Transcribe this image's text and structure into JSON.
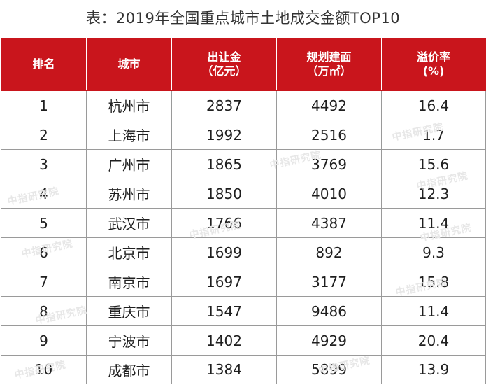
{
  "title": "表：2019年全国重点城市土地成交金额TOP10",
  "header": {
    "rank": "排名",
    "city": "城市",
    "amount_line1": "出让金",
    "amount_line2": "（亿元）",
    "area_line1": "规划建面",
    "area_line2": "（万㎡）",
    "premium_line1": "溢价率",
    "premium_line2": "(%)"
  },
  "rows": [
    {
      "rank": "1",
      "city": "杭州市",
      "amount": "2837",
      "area": "4492",
      "premium": "16.4"
    },
    {
      "rank": "2",
      "city": "上海市",
      "amount": "1992",
      "area": "2516",
      "premium": "1.7"
    },
    {
      "rank": "3",
      "city": "广州市",
      "amount": "1865",
      "area": "3769",
      "premium": "15.6"
    },
    {
      "rank": "4",
      "city": "苏州市",
      "amount": "1850",
      "area": "4010",
      "premium": "12.3"
    },
    {
      "rank": "5",
      "city": "武汉市",
      "amount": "1766",
      "area": "4387",
      "premium": "11.4"
    },
    {
      "rank": "6",
      "city": "北京市",
      "amount": "1699",
      "area": "892",
      "premium": "9.3"
    },
    {
      "rank": "7",
      "city": "南京市",
      "amount": "1697",
      "area": "3177",
      "premium": "15.8"
    },
    {
      "rank": "8",
      "city": "重庆市",
      "amount": "1547",
      "area": "9486",
      "premium": "11.4"
    },
    {
      "rank": "9",
      "city": "宁波市",
      "amount": "1402",
      "area": "4929",
      "premium": "20.4"
    },
    {
      "rank": "10",
      "city": "成都市",
      "amount": "1384",
      "area": "5899",
      "premium": "13.9"
    }
  ],
  "watermark": "中指研究院",
  "colors": {
    "header_bg": "#c9151c",
    "header_text": "#ffffff",
    "border": "#9a9a9a"
  }
}
